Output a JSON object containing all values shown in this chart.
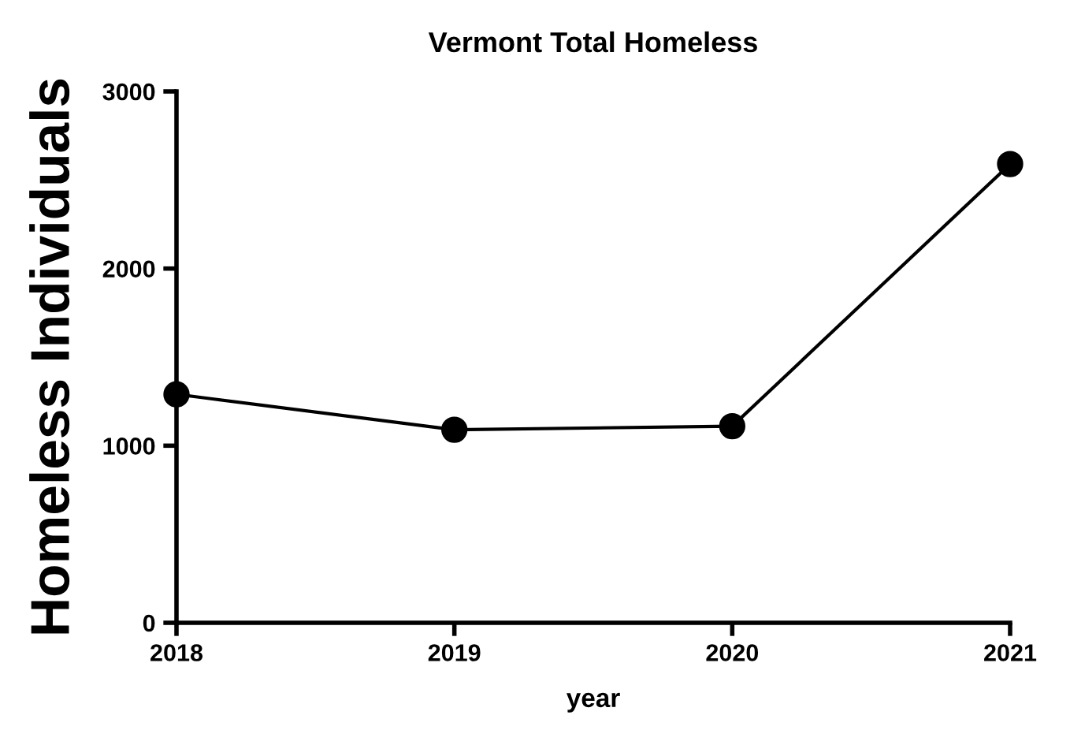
{
  "chart_data": {
    "type": "line",
    "title": "Vermont Total Homeless",
    "xlabel": "year",
    "ylabel": "Homeless Individuals",
    "x": [
      2018,
      2019,
      2020,
      2021
    ],
    "series": [
      {
        "color": "#000000",
        "values": [
          1290,
          1090,
          1110,
          2590
        ]
      }
    ],
    "xlim": [
      2018,
      2021
    ],
    "xticks": [
      2018,
      2019,
      2020,
      2021
    ],
    "ylim": [
      0,
      3000
    ],
    "yticks": [
      0,
      1000,
      2000,
      3000
    ],
    "grid": false,
    "legend": false,
    "marker": "circle",
    "line_style": "solid"
  }
}
